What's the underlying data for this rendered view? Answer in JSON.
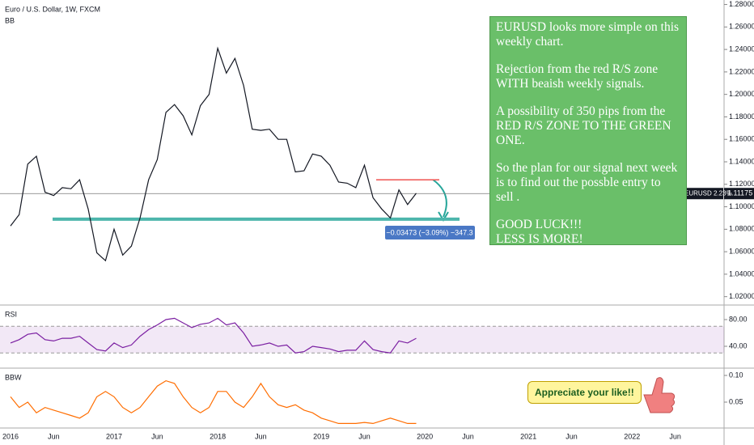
{
  "chart_data": [
    {
      "type": "line",
      "title": "Euro / U.S. Dollar, 1W, FXCM",
      "indicator": "BB",
      "series": [
        {
          "name": "EURUSD",
          "color": "#131722",
          "values": [
            1.083,
            1.093,
            1.138,
            1.145,
            1.113,
            1.11,
            1.117,
            1.116,
            1.124,
            1.098,
            1.059,
            1.052,
            1.08,
            1.057,
            1.065,
            1.09,
            1.124,
            1.142,
            1.184,
            1.191,
            1.181,
            1.164,
            1.19,
            1.2,
            1.241,
            1.219,
            1.232,
            1.208,
            1.169,
            1.168,
            1.169,
            1.16,
            1.16,
            1.131,
            1.132,
            1.147,
            1.145,
            1.137,
            1.122,
            1.121,
            1.117,
            1.137,
            1.108,
            1.098,
            1.09,
            1.115,
            1.102,
            1.112,
            null,
            null,
            null,
            null,
            null,
            null,
            null,
            null,
            null,
            null,
            null,
            null,
            null,
            null,
            null,
            null,
            null,
            null,
            null,
            null,
            null,
            null,
            null,
            null,
            null,
            null,
            null,
            null,
            null,
            null
          ]
        }
      ],
      "ylim": [
        1.014,
        1.284
      ],
      "yticks": [
        {
          "value": 1.02,
          "label": "1.02000"
        },
        {
          "value": 1.04,
          "label": "1.04000"
        },
        {
          "value": 1.06,
          "label": "1.06000"
        },
        {
          "value": 1.08,
          "label": "1.08000"
        },
        {
          "value": 1.1,
          "label": "1.10000"
        },
        {
          "value": 1.12,
          "label": "1.12000"
        },
        {
          "value": 1.14,
          "label": "1.14000"
        },
        {
          "value": 1.16,
          "label": "1.16000"
        },
        {
          "value": 1.18,
          "label": "1.18000"
        },
        {
          "value": 1.2,
          "label": "1.20000"
        },
        {
          "value": 1.22,
          "label": "1.22000"
        },
        {
          "value": 1.24,
          "label": "1.24000"
        },
        {
          "value": 1.26,
          "label": "1.26000"
        },
        {
          "value": 1.28,
          "label": "1.28000"
        }
      ],
      "price_line": {
        "value": 1.11175,
        "label": "1.11175",
        "symbol": "EURUSD 2.23%"
      },
      "support_level": 1.089,
      "resistance_level": 1.124,
      "measurement": "−0.03473 (−3.09%) −347.3",
      "note": [
        "EURUSD looks more simple on this weekly chart.",
        "Rejection from the red R/S zone WITH beaish weekly signals.",
        "A possibility of 350 pips from the RED R/S ZONE TO THE GREEN ONE.",
        "So the plan for our signal next week is to find out the possble entry to sell .",
        "GOOD LUCK!!!",
        "LESS IS MORE!"
      ]
    },
    {
      "type": "line",
      "title": "RSI",
      "series": [
        {
          "name": "RSI",
          "color": "#7b1fa2",
          "values": [
            45,
            50,
            58,
            60,
            50,
            48,
            52,
            52,
            55,
            45,
            35,
            33,
            45,
            38,
            42,
            55,
            65,
            72,
            80,
            82,
            75,
            68,
            73,
            75,
            82,
            72,
            75,
            60,
            40,
            42,
            45,
            40,
            42,
            30,
            32,
            40,
            38,
            36,
            32,
            34,
            34,
            48,
            35,
            32,
            30,
            48,
            45,
            52,
            null,
            null,
            null,
            null,
            null,
            null,
            null,
            null,
            null,
            null,
            null,
            null,
            null,
            null,
            null,
            null,
            null,
            null,
            null,
            null,
            null,
            null,
            null,
            null,
            null,
            null,
            null,
            null,
            null,
            null
          ]
        }
      ],
      "band": [
        30,
        70
      ],
      "ylim": [
        10.9,
        98.2
      ],
      "yticks": [
        {
          "value": 40,
          "label": "40.00"
        },
        {
          "value": 80,
          "label": "80.00"
        }
      ]
    },
    {
      "type": "line",
      "title": "BBW",
      "categories": [
        "2016",
        null,
        null,
        null,
        null,
        "Jun",
        null,
        null,
        null,
        null,
        null,
        null,
        "2017",
        null,
        null,
        null,
        null,
        "Jun",
        null,
        null,
        null,
        null,
        null,
        null,
        "2018",
        null,
        null,
        null,
        null,
        "Jun",
        null,
        null,
        null,
        null,
        null,
        null,
        "2019",
        null,
        null,
        null,
        null,
        "Jun",
        null,
        null,
        null,
        null,
        null,
        null,
        "2020",
        null,
        null,
        null,
        null,
        "Jun",
        null,
        null,
        null,
        null,
        null,
        null,
        "2021",
        null,
        null,
        null,
        null,
        "Jun",
        null,
        null,
        null,
        null,
        null,
        null,
        "2022",
        null,
        null,
        null,
        null,
        "Jun"
      ],
      "series": [
        {
          "name": "BBW",
          "color": "#ff6d00",
          "values": [
            0.06,
            0.04,
            0.05,
            0.03,
            0.04,
            0.035,
            0.03,
            0.025,
            0.02,
            0.03,
            0.06,
            0.07,
            0.06,
            0.04,
            0.03,
            0.04,
            0.06,
            0.08,
            0.09,
            0.085,
            0.06,
            0.04,
            0.03,
            0.04,
            0.07,
            0.07,
            0.05,
            0.04,
            0.06,
            0.085,
            0.06,
            0.045,
            0.04,
            0.045,
            0.035,
            0.03,
            0.02,
            0.015,
            0.01,
            0.01,
            0.01,
            0.012,
            0.01,
            0.015,
            0.02,
            0.015,
            0.01,
            0.01,
            null,
            null,
            null,
            null,
            null,
            null,
            null,
            null,
            null,
            null,
            null,
            null,
            null,
            null,
            null,
            null,
            null,
            null,
            null,
            null,
            null,
            null,
            null,
            null,
            null,
            null,
            null,
            null,
            null,
            null
          ]
        }
      ],
      "ylim": [
        0.003,
        0.1106
      ],
      "yticks": [
        0.05,
        {
          "value": 0.1,
          "label": "0.10"
        }
      ],
      "callout": "Appreciate your like!!"
    }
  ]
}
